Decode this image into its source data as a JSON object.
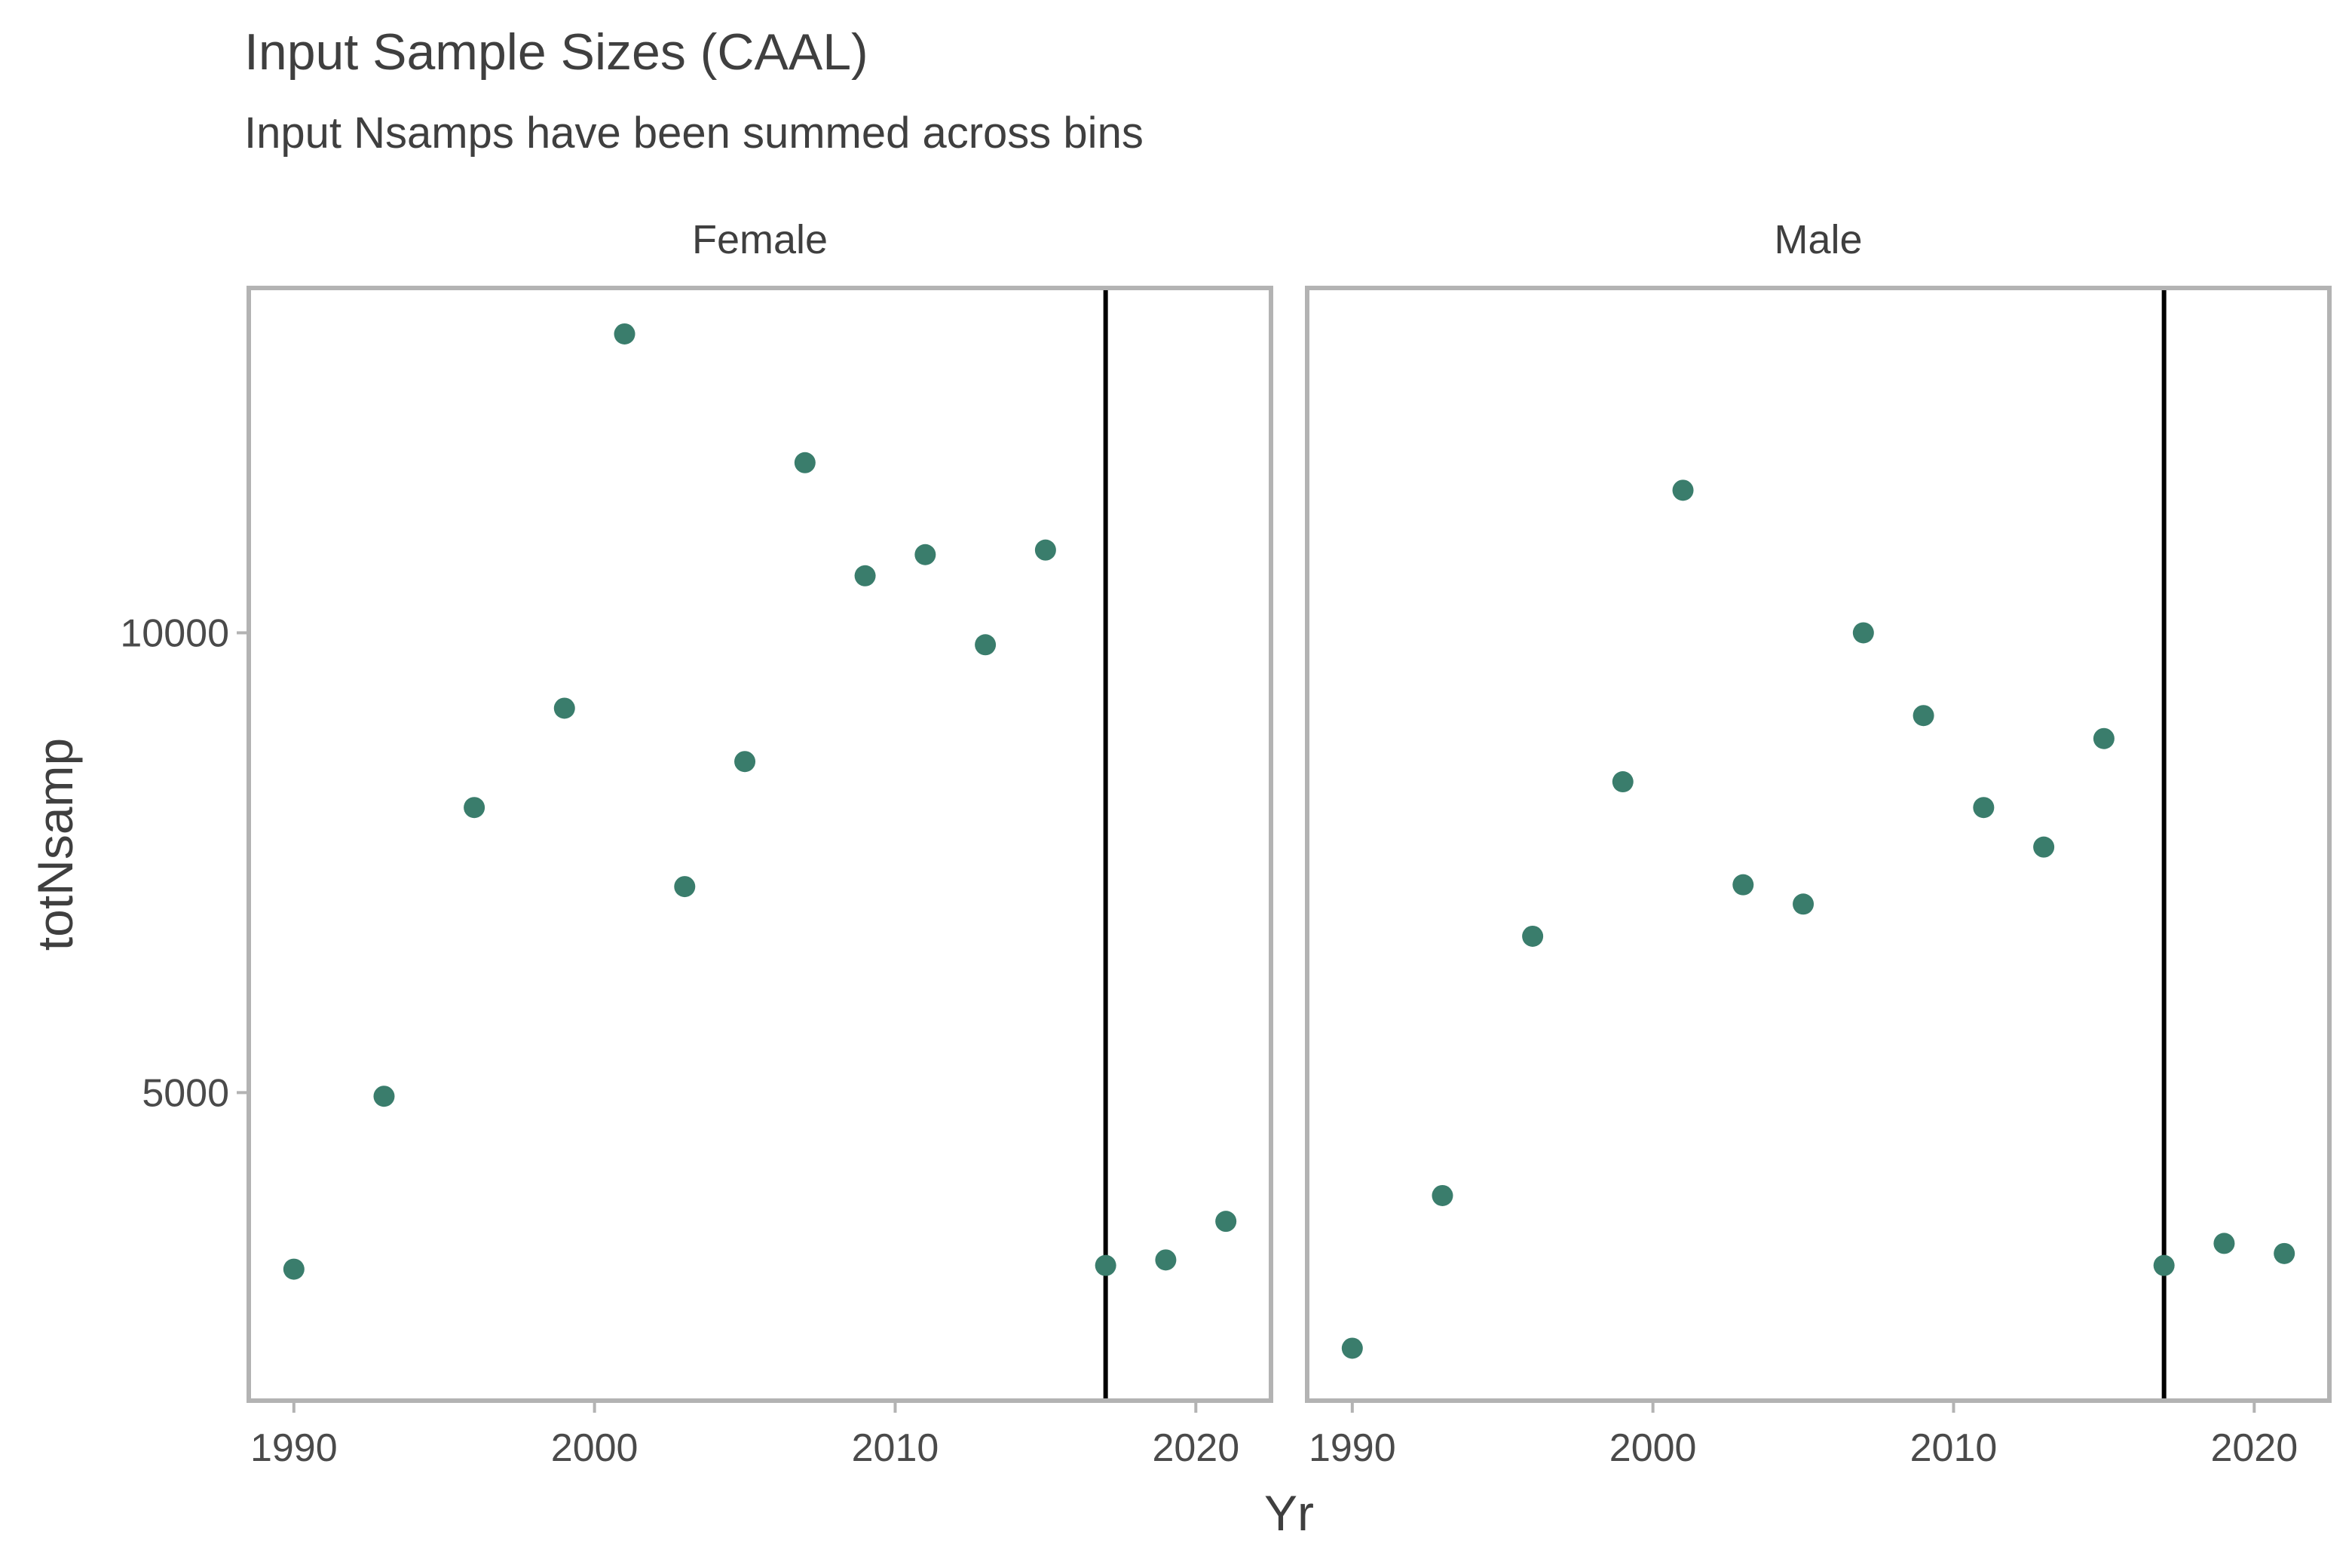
{
  "chart_data": {
    "type": "scatter",
    "title": "Input Sample Sizes (CAAL)",
    "subtitle": "Input Nsamps have been summed across bins",
    "xlabel": "Yr",
    "ylabel": "totNsamp",
    "xlim": [
      1988.5,
      2022.5
    ],
    "ylim": [
      1650,
      13750
    ],
    "x_ticks": [
      1990,
      2000,
      2010,
      2020
    ],
    "y_ticks": [
      5000,
      10000
    ],
    "reference_line_x": 2017,
    "point_color": "#3a7d6c",
    "frame_color": "#b3b3b3",
    "grid": false,
    "legend": "none",
    "panels": [
      {
        "name": "Female",
        "points": [
          {
            "x": 1990,
            "y": 3080
          },
          {
            "x": 1993,
            "y": 4960
          },
          {
            "x": 1996,
            "y": 8100
          },
          {
            "x": 1999,
            "y": 9180
          },
          {
            "x": 2001,
            "y": 13250
          },
          {
            "x": 2003,
            "y": 7240
          },
          {
            "x": 2005,
            "y": 8600
          },
          {
            "x": 2007,
            "y": 11850
          },
          {
            "x": 2009,
            "y": 10620
          },
          {
            "x": 2011,
            "y": 10850
          },
          {
            "x": 2013,
            "y": 9870
          },
          {
            "x": 2015,
            "y": 10900
          },
          {
            "x": 2017,
            "y": 3120
          },
          {
            "x": 2019,
            "y": 3180
          },
          {
            "x": 2021,
            "y": 3600
          }
        ]
      },
      {
        "name": "Male",
        "points": [
          {
            "x": 1990,
            "y": 2220
          },
          {
            "x": 1993,
            "y": 3880
          },
          {
            "x": 1996,
            "y": 6700
          },
          {
            "x": 1999,
            "y": 8380
          },
          {
            "x": 2001,
            "y": 11550
          },
          {
            "x": 2003,
            "y": 7260
          },
          {
            "x": 2005,
            "y": 7050
          },
          {
            "x": 2007,
            "y": 10000
          },
          {
            "x": 2009,
            "y": 9100
          },
          {
            "x": 2011,
            "y": 8100
          },
          {
            "x": 2013,
            "y": 7670
          },
          {
            "x": 2015,
            "y": 8850
          },
          {
            "x": 2017,
            "y": 3120
          },
          {
            "x": 2019,
            "y": 3360
          },
          {
            "x": 2021,
            "y": 3250
          }
        ]
      }
    ]
  }
}
